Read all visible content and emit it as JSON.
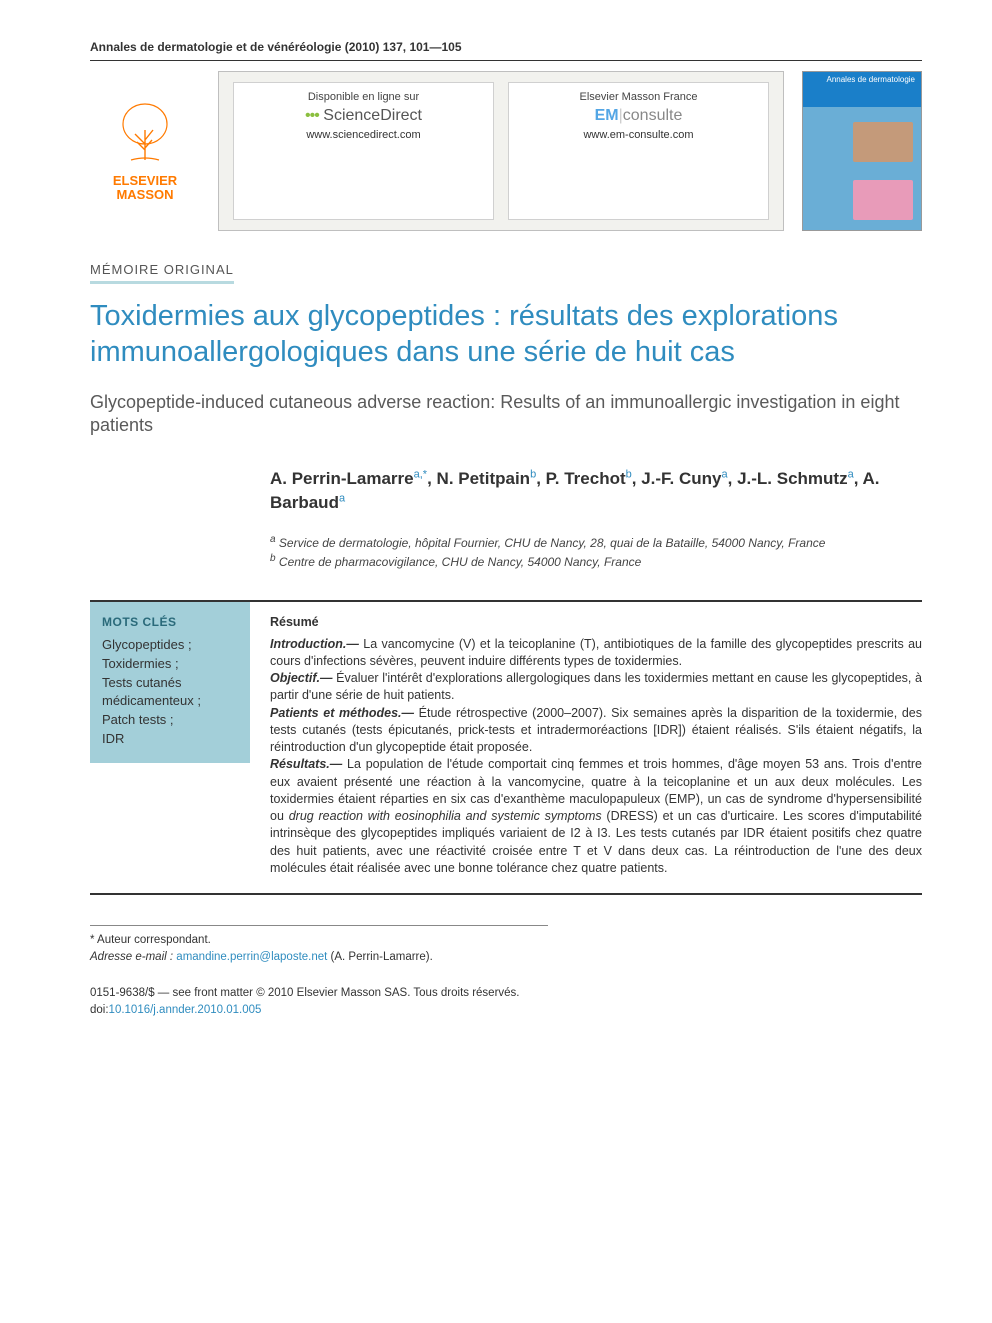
{
  "header": {
    "journal_citation": "Annales de dermatologie et de vénéréologie (2010) 137, 101—105"
  },
  "banner": {
    "publisher_brand_line1": "ELSEVIER",
    "publisher_brand_line2": "MASSON",
    "publisher_color": "#ff7a00",
    "card1": {
      "line1": "Disponible en ligne sur",
      "brand_html": "ScienceDirect",
      "url": "www.sciencedirect.com"
    },
    "card2": {
      "line1": "Elsevier Masson France",
      "em_text": "EM",
      "consulte_text": "consulte",
      "url": "www.em-consulte.com"
    },
    "cover": {
      "top_text": "Annales de\ndermatologie",
      "bg_color": "#6aaed6",
      "top_bg": "#1a7fc9"
    }
  },
  "article": {
    "type_label": "MÉMOIRE ORIGINAL",
    "title_fr": "Toxidermies aux glycopeptides : résultats des explorations immunoallergologiques dans une série de huit cas",
    "title_en": "Glycopeptide-induced cutaneous adverse reaction: Results of an immunoallergic investigation in eight patients",
    "title_color": "#2f8cbf",
    "authors_html": "A. Perrin-Lamarre<sup>a,*</sup>, N. Petitpain<sup>b</sup>, P. Trechot<sup>b</sup>, J.-F. Cuny<sup>a</sup>, J.-L. Schmutz<sup>a</sup>, A. Barbaud<sup>a</sup>",
    "affiliations": {
      "a": "Service de dermatologie, hôpital Fournier, CHU de Nancy, 28, quai de la Bataille, 54000 Nancy, France",
      "b": "Centre de pharmacovigilance, CHU de Nancy, 54000 Nancy, France"
    }
  },
  "keywords": {
    "heading": "MOTS CLÉS",
    "items": [
      "Glycopeptides ;",
      "Toxidermies ;",
      "Tests cutanés médicamenteux ;",
      "Patch tests ;",
      "IDR"
    ],
    "box_bg": "#a3cfd9"
  },
  "abstract": {
    "heading": "Résumé",
    "sections": [
      {
        "label": "Introduction.—",
        "text": "La vancomycine (V) et la teicoplanine (T), antibiotiques de la famille des glycopeptides prescrits au cours d'infections sévères, peuvent induire différents types de toxidermies."
      },
      {
        "label": "Objectif.—",
        "text": "Évaluer l'intérêt d'explorations allergologiques dans les toxidermies mettant en cause les glycopeptides, à partir d'une série de huit patients."
      },
      {
        "label": "Patients et méthodes.—",
        "text": "Étude rétrospective (2000–2007). Six semaines après la disparition de la toxidermie, des tests cutanés (tests épicutanés, prick-tests et intradermoréactions [IDR]) étaient réalisés. S'ils étaient négatifs, la réintroduction d'un glycopeptide était proposée."
      },
      {
        "label": "Résultats.—",
        "text": "La population de l'étude comportait cinq femmes et trois hommes, d'âge moyen 53 ans. Trois d'entre eux avaient présenté une réaction à la vancomycine, quatre à la teicoplanine et un aux deux molécules. Les toxidermies étaient réparties en six cas d'exanthème maculopapuleux (EMP), un cas de syndrome d'hypersensibilité ou <em>drug reaction with eosinophilia and systemic symptoms</em> (DRESS) et un cas d'urticaire. Les scores d'imputabilité intrinsèque des glycopeptides impliqués variaient de I2 à I3. Les tests cutanés par IDR étaient positifs chez quatre des huit patients, avec une réactivité croisée entre T et V dans deux cas. La réintroduction de l'une des deux molécules était réalisée avec une bonne tolérance chez quatre patients."
      }
    ]
  },
  "footer": {
    "corresponding": "* Auteur correspondant.",
    "email_label": "Adresse e-mail :",
    "email": "amandine.perrin@laposte.net",
    "email_suffix": "(A. Perrin-Lamarre).",
    "issn_line": "0151-9638/$ — see front matter © 2010 Elsevier Masson SAS. Tous droits réservés.",
    "doi_label": "doi:",
    "doi": "10.1016/j.annder.2010.01.005"
  }
}
